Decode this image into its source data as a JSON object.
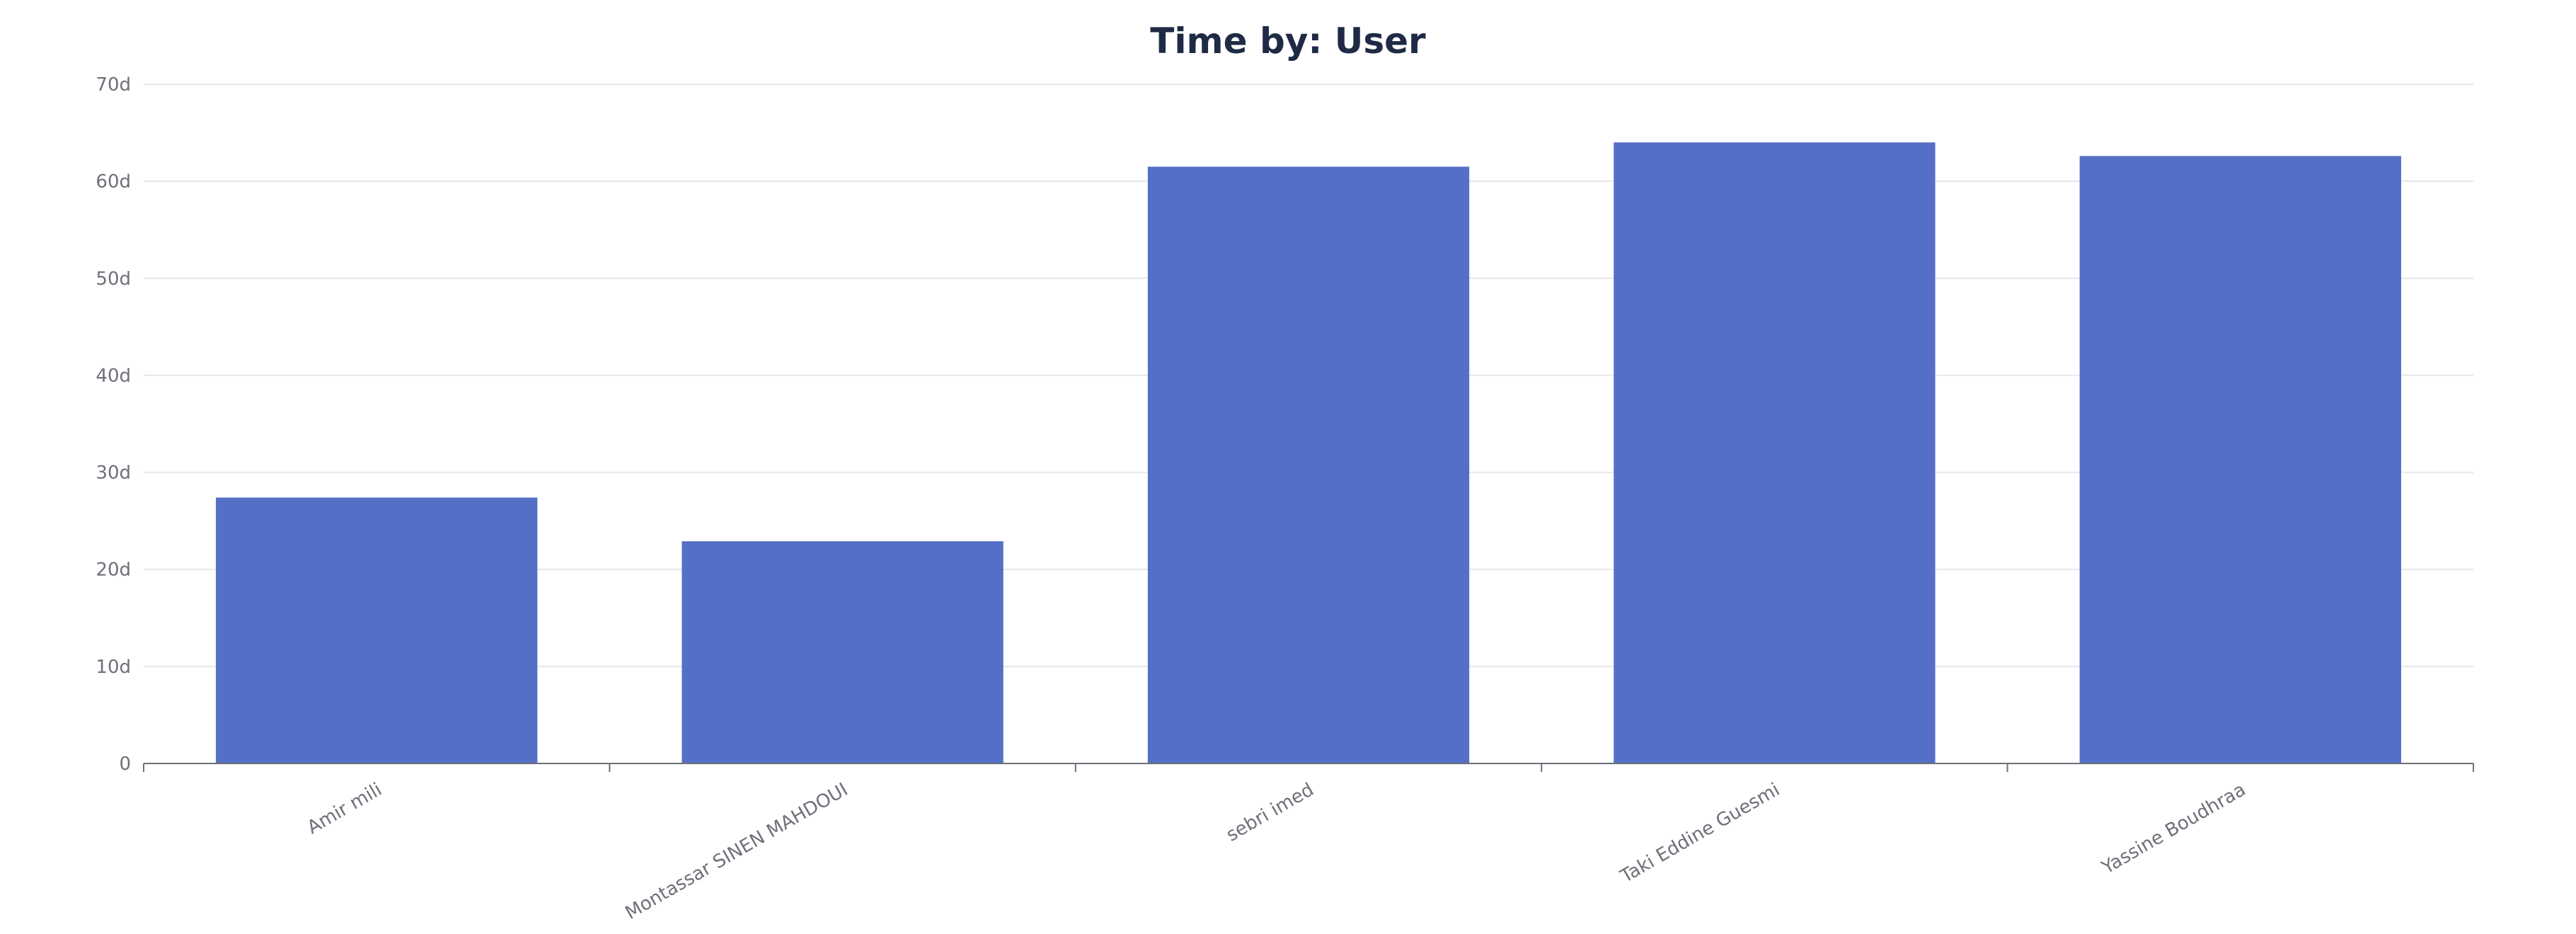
{
  "chart_data": {
    "type": "bar",
    "title": "Time by: User",
    "xlabel": "",
    "ylabel": "",
    "categories": [
      "Amir mili",
      "Montassar SINEN MAHDOUI",
      "sebri imed",
      "Taki Eddine Guesmi",
      "Yassine Boudhraa"
    ],
    "values": [
      27.4,
      22.9,
      61.5,
      64.0,
      62.6
    ],
    "value_unit": "d",
    "ylim": [
      0,
      70
    ],
    "y_ticks": [
      {
        "value": 0,
        "label": "0"
      },
      {
        "value": 10,
        "label": "10d"
      },
      {
        "value": 20,
        "label": "20d"
      },
      {
        "value": 30,
        "label": "30d"
      },
      {
        "value": 40,
        "label": "40d"
      },
      {
        "value": 50,
        "label": "50d"
      },
      {
        "value": 60,
        "label": "60d"
      },
      {
        "value": 70,
        "label": "70d"
      }
    ],
    "grid": true,
    "legend": "none",
    "colors": {
      "bar": "#5470c6",
      "title": "#1f2a44",
      "gridline": "#e6e6e6",
      "axis": "#6e7079",
      "tick_text": "#6e7079"
    }
  }
}
